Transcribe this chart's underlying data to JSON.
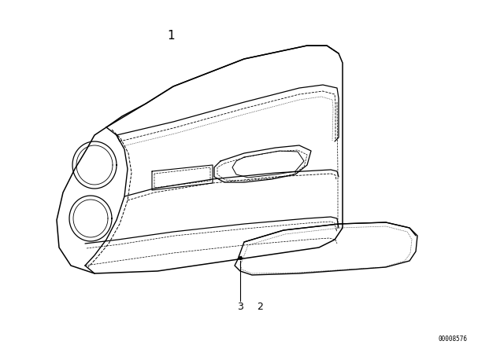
{
  "bg_color": "#ffffff",
  "line_color": "#000000",
  "label_1": "1",
  "label_2": "2",
  "label_3": "3",
  "watermark": "00008576",
  "fig_width": 6.4,
  "fig_height": 4.48,
  "dpi": 100
}
